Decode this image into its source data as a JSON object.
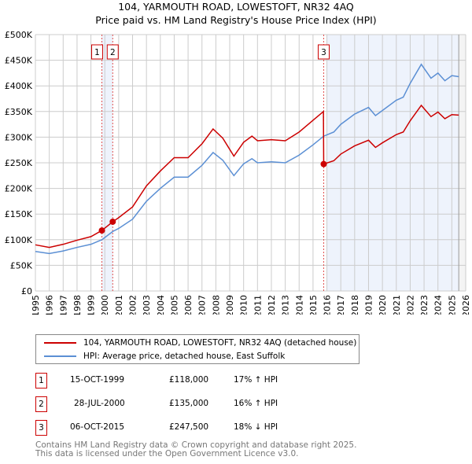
{
  "chart_data": {
    "type": "line",
    "title": "104, YARMOUTH ROAD, LOWESTOFT, NR32 4AQ",
    "subtitle": "Price paid vs. HM Land Registry's House Price Index (HPI)",
    "xlim": [
      1995,
      2026
    ],
    "ylim": [
      0,
      500000
    ],
    "x_ticks": [
      "1995",
      "1996",
      "1997",
      "1998",
      "1999",
      "2000",
      "2001",
      "2002",
      "2003",
      "2004",
      "2005",
      "2006",
      "2007",
      "2008",
      "2009",
      "2010",
      "2011",
      "2012",
      "2013",
      "2014",
      "2015",
      "2016",
      "2017",
      "2018",
      "2019",
      "2020",
      "2021",
      "2022",
      "2023",
      "2024",
      "2025",
      "2026"
    ],
    "y_ticks": [
      {
        "v": 0,
        "label": "£0"
      },
      {
        "v": 50000,
        "label": "£50K"
      },
      {
        "v": 100000,
        "label": "£100K"
      },
      {
        "v": 150000,
        "label": "£150K"
      },
      {
        "v": 200000,
        "label": "£200K"
      },
      {
        "v": 250000,
        "label": "£250K"
      },
      {
        "v": 300000,
        "label": "£300K"
      },
      {
        "v": 350000,
        "label": "£350K"
      },
      {
        "v": 400000,
        "label": "£400K"
      },
      {
        "v": 450000,
        "label": "£450K"
      },
      {
        "v": 500000,
        "label": "£500K"
      }
    ],
    "series": [
      {
        "name": "104, YARMOUTH ROAD, LOWESTOFT, NR32 4AQ (detached house)",
        "color": "#cc0000",
        "x": [
          1995,
          1996,
          1997,
          1998,
          1999,
          1999.79,
          2000.57,
          2001,
          2002,
          2003,
          2004,
          2005,
          2006,
          2007,
          2007.8,
          2008.5,
          2009.3,
          2010,
          2010.6,
          2011,
          2012,
          2013,
          2014,
          2015,
          2015.75,
          2015.77,
          2016.5,
          2017,
          2018,
          2019,
          2019.5,
          2020,
          2021,
          2021.5,
          2022,
          2022.8,
          2023.5,
          2024,
          2024.5,
          2025,
          2025.5
        ],
        "y": [
          90,
          85,
          91,
          99,
          106,
          118,
          135,
          143,
          164,
          205,
          234,
          260,
          260,
          287,
          316,
          298,
          263,
          290,
          302,
          293,
          295,
          293,
          310,
          333,
          350,
          247.5,
          254,
          267,
          283,
          294,
          280,
          289,
          305,
          310,
          332,
          362,
          340,
          349,
          336,
          344,
          343
        ]
      },
      {
        "name": "HPI: Average price, detached house, East Suffolk",
        "color": "#5b8fd4",
        "x": [
          1995,
          1996,
          1997,
          1998,
          1999,
          1999.79,
          2000.57,
          2001,
          2002,
          2003,
          2004,
          2005,
          2006,
          2007,
          2007.8,
          2008.5,
          2009.3,
          2010,
          2010.6,
          2011,
          2012,
          2013,
          2014,
          2015,
          2015.77,
          2016.5,
          2017,
          2018,
          2019,
          2019.5,
          2020,
          2021,
          2021.5,
          2022,
          2022.8,
          2023.5,
          2024,
          2024.5,
          2025,
          2025.5
        ],
        "y": [
          77,
          73,
          78,
          85,
          91,
          100,
          116,
          122,
          140,
          175,
          200,
          222,
          222,
          245,
          270,
          255,
          225,
          248,
          258,
          250,
          252,
          250,
          265,
          285,
          302,
          310,
          325,
          345,
          358,
          342,
          352,
          372,
          378,
          405,
          442,
          415,
          425,
          410,
          420,
          418
        ]
      }
    ],
    "y_units": "thousands GBP",
    "sales": [
      {
        "n": "1",
        "x": 1999.79,
        "y": 118
      },
      {
        "n": "2",
        "x": 2000.57,
        "y": 135
      },
      {
        "n": "3",
        "x": 2015.77,
        "y": 247.5
      }
    ]
  },
  "legend": {
    "red": "104, YARMOUTH ROAD, LOWESTOFT, NR32 4AQ (detached house)",
    "blue": "HPI: Average price, detached house, East Suffolk"
  },
  "transactions": [
    {
      "n": "1",
      "date": "15-OCT-1999",
      "price": "£118,000",
      "hpi": "17% ↑ HPI"
    },
    {
      "n": "2",
      "date": "28-JUL-2000",
      "price": "£135,000",
      "hpi": "16% ↑ HPI"
    },
    {
      "n": "3",
      "date": "06-OCT-2015",
      "price": "£247,500",
      "hpi": "18% ↓ HPI"
    }
  ],
  "footer": [
    "Contains HM Land Registry data © Crown copyright and database right 2025.",
    "This data is licensed under the Open Government Licence v3.0."
  ]
}
